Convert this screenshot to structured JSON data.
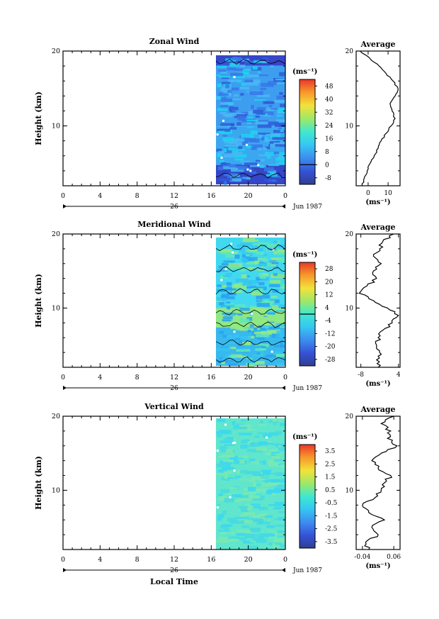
{
  "chart_data": [
    {
      "type": "heatmap",
      "title": "Zonal Wind",
      "ylabel": "Height (km)",
      "ylim": [
        2,
        20
      ],
      "yticks": [
        "20",
        "10"
      ],
      "xticks": [
        "0",
        "4",
        "8",
        "12",
        "16",
        "20",
        "0"
      ],
      "date_label": "26",
      "month_label": "Jun 1987",
      "colorbar": {
        "unit": "(ms⁻¹)",
        "ticks": [
          "48",
          "40",
          "32",
          "24",
          "16",
          "8",
          "0",
          "-8"
        ],
        "range": [
          -12,
          52
        ]
      },
      "field": {
        "time_range_hours": [
          16.7,
          24
        ],
        "description_values_ms": [
          -4,
          8,
          12,
          16,
          20,
          4,
          -4
        ]
      },
      "average_profile": {
        "title": "Average",
        "xlabel": "(ms⁻¹)",
        "xticks": [
          "0",
          "10"
        ],
        "xlim": [
          -6,
          16
        ],
        "yticks": [
          "20",
          "10"
        ],
        "height_km": [
          2.0,
          3.0,
          4.0,
          5.0,
          6.0,
          7.0,
          8.0,
          9.0,
          10.0,
          11.0,
          12.0,
          13.0,
          14.0,
          15.0,
          16.0,
          17.0,
          18.0,
          19.0,
          20.0
        ],
        "value": [
          -3.0,
          -2.0,
          -0.5,
          1.0,
          3.0,
          5.0,
          6.5,
          9.0,
          11.5,
          13.5,
          12.0,
          11.0,
          13.5,
          15.0,
          12.5,
          9.0,
          5.5,
          1.0,
          -4.0
        ]
      }
    },
    {
      "type": "heatmap",
      "title": "Meridional Wind",
      "ylabel": "Height (km)",
      "ylim": [
        2,
        20
      ],
      "yticks": [
        "20",
        "10"
      ],
      "xticks": [
        "0",
        "4",
        "8",
        "12",
        "16",
        "20",
        "0"
      ],
      "date_label": "26",
      "month_label": "Jun 1987",
      "colorbar": {
        "unit": "(ms⁻¹)",
        "ticks": [
          "28",
          "20",
          "12",
          "4",
          "-4",
          "-12",
          "-20",
          "-28"
        ],
        "range": [
          -32,
          32
        ]
      },
      "average_profile": {
        "title": "Average",
        "xlabel": "(ms⁻¹)",
        "xticks": [
          "-8",
          "4"
        ],
        "xlim": [
          -9.5,
          4.5
        ],
        "yticks": [
          "20",
          "10"
        ],
        "height_km": [
          2.0,
          3.0,
          4.0,
          5.0,
          6.0,
          7.0,
          8.0,
          9.0,
          10.0,
          11.0,
          12.0,
          13.0,
          14.0,
          15.0,
          16.0,
          17.0,
          18.0,
          19.0,
          20.0
        ],
        "value": [
          -2.5,
          -3.0,
          -2.0,
          -3.0,
          -2.5,
          -1.0,
          2.0,
          4.0,
          0.5,
          -4.0,
          -8.5,
          -6.0,
          -3.0,
          -4.0,
          -1.5,
          -4.0,
          -2.0,
          -1.0,
          2.5
        ]
      }
    },
    {
      "type": "heatmap",
      "title": "Vertical Wind",
      "ylabel": "Height (km)",
      "xlabel": "Local Time",
      "ylim": [
        2,
        20
      ],
      "yticks": [
        "20",
        "10"
      ],
      "xticks": [
        "0",
        "4",
        "8",
        "12",
        "16",
        "20",
        "0"
      ],
      "date_label": "26",
      "month_label": "Jun 1987",
      "colorbar": {
        "unit": "(ms⁻¹)",
        "ticks": [
          "3.5",
          "2.5",
          "1.5",
          "0.5",
          "-0.5",
          "-1.5",
          "-2.5",
          "-3.5"
        ],
        "range": [
          -4,
          4
        ]
      },
      "average_profile": {
        "title": "Average",
        "xlabel": "(ms⁻¹)",
        "xticks": [
          "-0.04",
          "0.06"
        ],
        "xlim": [
          -0.06,
          0.08
        ],
        "yticks": [
          "20",
          "10"
        ],
        "height_km": [
          2.0,
          3.0,
          4.0,
          5.0,
          6.0,
          7.0,
          8.0,
          9.0,
          10.0,
          11.0,
          12.0,
          13.0,
          14.0,
          15.0,
          16.0,
          17.0,
          18.0,
          19.0,
          20.0
        ],
        "value": [
          -0.02,
          -0.03,
          0.01,
          -0.01,
          0.03,
          -0.02,
          -0.04,
          0.0,
          0.02,
          0.03,
          0.05,
          0.01,
          -0.01,
          0.02,
          0.07,
          0.04,
          0.05,
          0.02,
          0.06
        ]
      }
    }
  ]
}
